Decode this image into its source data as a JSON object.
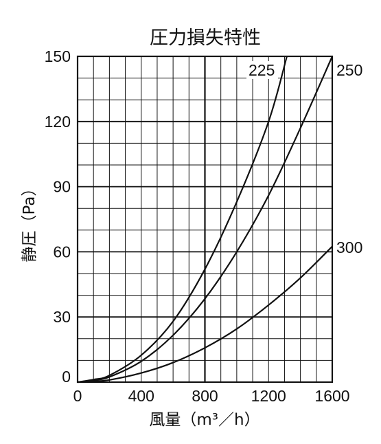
{
  "chart_data": {
    "type": "line",
    "title": "圧力損失特性",
    "xlabel": "風量（m³／h）",
    "ylabel": "静圧（Pa）",
    "xlim": [
      0,
      1600
    ],
    "ylim": [
      0,
      150
    ],
    "x_ticks": [
      "0",
      "400",
      "800",
      "1200",
      "1600"
    ],
    "y_ticks": [
      "0",
      "30",
      "60",
      "90",
      "120",
      "150"
    ],
    "grid": true,
    "series": [
      {
        "name": "225",
        "x": [
          0,
          100,
          200,
          400,
          600,
          800,
          1000,
          1200,
          1315
        ],
        "y": [
          0,
          1.2,
          3.1,
          12.4,
          28,
          52,
          83,
          120,
          150
        ]
      },
      {
        "name": "250",
        "x": [
          0,
          100,
          200,
          400,
          600,
          800,
          1000,
          1200,
          1400,
          1600
        ],
        "y": [
          0,
          0.9,
          2.4,
          9.6,
          21.6,
          38.4,
          60,
          86,
          117,
          150
        ]
      },
      {
        "name": "300",
        "x": [
          0,
          100,
          200,
          400,
          600,
          800,
          1000,
          1200,
          1400,
          1600
        ],
        "y": [
          0,
          0.4,
          1,
          4.2,
          9,
          15.8,
          24.5,
          35.5,
          48,
          62.5
        ]
      }
    ]
  }
}
